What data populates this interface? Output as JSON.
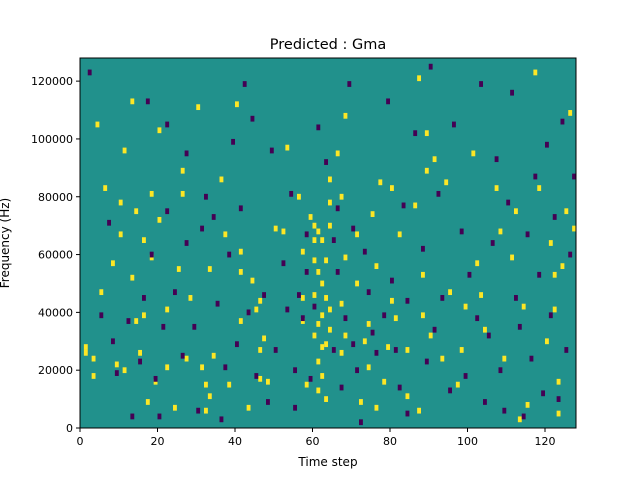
{
  "chart_data": {
    "type": "heatmap",
    "title": "Predicted : Gma",
    "xlabel": "Time step",
    "ylabel": "Frequency (Hz)",
    "xlim": [
      0,
      128
    ],
    "ylim": [
      0,
      128000
    ],
    "xticks": [
      0,
      20,
      40,
      60,
      80,
      100,
      120
    ],
    "yticks": [
      0,
      20000,
      40000,
      60000,
      80000,
      100000,
      120000
    ],
    "xtick_labels": [
      "0",
      "20",
      "40",
      "60",
      "80",
      "100",
      "120"
    ],
    "ytick_labels": [
      "0",
      "20000",
      "40000",
      "60000",
      "80000",
      "100000",
      "120000"
    ],
    "grid": false,
    "legend": "none",
    "colors": {
      "background": "#21918c",
      "high": "#fde725",
      "low": "#440154"
    },
    "levels": {
      "background": 0,
      "high": 1,
      "low": -1
    },
    "cell_size": {
      "time_steps": 1,
      "frequency_hz": 2000
    },
    "high_cells": [
      [
        1,
        25000
      ],
      [
        1,
        27000
      ],
      [
        3,
        23000
      ],
      [
        3,
        17000
      ],
      [
        4,
        104000
      ],
      [
        5,
        46000
      ],
      [
        6,
        82000
      ],
      [
        8,
        56000
      ],
      [
        9,
        21000
      ],
      [
        10,
        66000
      ],
      [
        10,
        77000
      ],
      [
        11,
        19000
      ],
      [
        11,
        95000
      ],
      [
        13,
        51000
      ],
      [
        13,
        112000
      ],
      [
        14,
        74000
      ],
      [
        14,
        36000
      ],
      [
        15,
        25000
      ],
      [
        16,
        64000
      ],
      [
        16,
        38000
      ],
      [
        17,
        8000
      ],
      [
        18,
        80000
      ],
      [
        18,
        58000
      ],
      [
        19,
        15000
      ],
      [
        20,
        71000
      ],
      [
        20,
        102000
      ],
      [
        22,
        20000
      ],
      [
        22,
        40000
      ],
      [
        24,
        6000
      ],
      [
        25,
        54000
      ],
      [
        26,
        80000
      ],
      [
        26,
        88000
      ],
      [
        27,
        23000
      ],
      [
        28,
        44000
      ],
      [
        30,
        110000
      ],
      [
        31,
        20000
      ],
      [
        32,
        5000
      ],
      [
        32,
        14000
      ],
      [
        33,
        10000
      ],
      [
        33,
        54000
      ],
      [
        34,
        24000
      ],
      [
        36,
        85000
      ],
      [
        37,
        66000
      ],
      [
        38,
        14000
      ],
      [
        40,
        111000
      ],
      [
        41,
        53000
      ],
      [
        41,
        60000
      ],
      [
        41,
        36000
      ],
      [
        43,
        6000
      ],
      [
        44,
        50000
      ],
      [
        45,
        40000
      ],
      [
        46,
        16000
      ],
      [
        46,
        26000
      ],
      [
        46,
        43000
      ],
      [
        47,
        30000
      ],
      [
        48,
        15000
      ],
      [
        50,
        68000
      ],
      [
        52,
        67000
      ],
      [
        53,
        96000
      ],
      [
        56,
        79000
      ],
      [
        57,
        60000
      ],
      [
        57,
        36000
      ],
      [
        57,
        44000
      ],
      [
        58,
        14000
      ],
      [
        59,
        72000
      ],
      [
        60,
        69000
      ],
      [
        60,
        64000
      ],
      [
        60,
        57000
      ],
      [
        60,
        45000
      ],
      [
        60,
        31000
      ],
      [
        61,
        67000
      ],
      [
        61,
        53000
      ],
      [
        61,
        35000
      ],
      [
        61,
        22000
      ],
      [
        61,
        12000
      ],
      [
        62,
        64000
      ],
      [
        62,
        49000
      ],
      [
        62,
        38000
      ],
      [
        62,
        27000
      ],
      [
        62,
        17000
      ],
      [
        63,
        57000
      ],
      [
        63,
        44000
      ],
      [
        63,
        28000
      ],
      [
        63,
        9000
      ],
      [
        64,
        85000
      ],
      [
        64,
        77000
      ],
      [
        64,
        69000
      ],
      [
        64,
        40000
      ],
      [
        64,
        33000
      ],
      [
        66,
        94000
      ],
      [
        67,
        79000
      ],
      [
        67,
        42000
      ],
      [
        67,
        25000
      ],
      [
        68,
        107000
      ],
      [
        68,
        58000
      ],
      [
        68,
        31000
      ],
      [
        71,
        66000
      ],
      [
        71,
        49000
      ],
      [
        72,
        8000
      ],
      [
        73,
        29000
      ],
      [
        74,
        20000
      ],
      [
        74,
        35000
      ],
      [
        75,
        73000
      ],
      [
        76,
        6000
      ],
      [
        76,
        55000
      ],
      [
        77,
        84000
      ],
      [
        78,
        15000
      ],
      [
        79,
        27000
      ],
      [
        80,
        43000
      ],
      [
        80,
        82000
      ],
      [
        81,
        37000
      ],
      [
        82,
        66000
      ],
      [
        84,
        26000
      ],
      [
        84,
        10000
      ],
      [
        86,
        76000
      ],
      [
        87,
        120000
      ],
      [
        87,
        5000
      ],
      [
        88,
        52000
      ],
      [
        88,
        38000
      ],
      [
        89,
        101000
      ],
      [
        89,
        88000
      ],
      [
        90,
        31000
      ],
      [
        91,
        92000
      ],
      [
        93,
        23000
      ],
      [
        94,
        84000
      ],
      [
        95,
        46000
      ],
      [
        97,
        14000
      ],
      [
        98,
        26000
      ],
      [
        99,
        41000
      ],
      [
        101,
        94000
      ],
      [
        102,
        56000
      ],
      [
        103,
        45000
      ],
      [
        104,
        33000
      ],
      [
        107,
        82000
      ],
      [
        108,
        67000
      ],
      [
        109,
        23000
      ],
      [
        111,
        58000
      ],
      [
        112,
        74000
      ],
      [
        113,
        2000
      ],
      [
        114,
        41000
      ],
      [
        115,
        7000
      ],
      [
        117,
        122000
      ],
      [
        118,
        82000
      ],
      [
        120,
        29000
      ],
      [
        121,
        63000
      ],
      [
        122,
        52000
      ],
      [
        122,
        40000
      ],
      [
        123,
        15000
      ],
      [
        123,
        4000
      ],
      [
        124,
        55000
      ],
      [
        125,
        74000
      ],
      [
        126,
        108000
      ],
      [
        127,
        68000
      ]
    ],
    "low_cells": [
      [
        2,
        122000
      ],
      [
        5,
        38000
      ],
      [
        7,
        70000
      ],
      [
        8,
        29000
      ],
      [
        9,
        18000
      ],
      [
        12,
        36000
      ],
      [
        13,
        3000
      ],
      [
        15,
        22000
      ],
      [
        16,
        44000
      ],
      [
        17,
        112000
      ],
      [
        18,
        59000
      ],
      [
        19,
        16000
      ],
      [
        20,
        3000
      ],
      [
        21,
        34000
      ],
      [
        22,
        74000
      ],
      [
        22,
        104000
      ],
      [
        24,
        46000
      ],
      [
        26,
        24000
      ],
      [
        27,
        63000
      ],
      [
        27,
        94000
      ],
      [
        29,
        34000
      ],
      [
        30,
        5000
      ],
      [
        31,
        68000
      ],
      [
        32,
        79000
      ],
      [
        34,
        72000
      ],
      [
        35,
        42000
      ],
      [
        36,
        2000
      ],
      [
        37,
        20000
      ],
      [
        38,
        59000
      ],
      [
        39,
        98000
      ],
      [
        40,
        28000
      ],
      [
        41,
        75000
      ],
      [
        42,
        118000
      ],
      [
        43,
        39000
      ],
      [
        44,
        106000
      ],
      [
        45,
        17000
      ],
      [
        47,
        45000
      ],
      [
        48,
        8000
      ],
      [
        49,
        95000
      ],
      [
        50,
        26000
      ],
      [
        52,
        56000
      ],
      [
        53,
        40000
      ],
      [
        54,
        80000
      ],
      [
        55,
        19000
      ],
      [
        55,
        6000
      ],
      [
        56,
        45000
      ],
      [
        57,
        37000
      ],
      [
        58,
        66000
      ],
      [
        58,
        53000
      ],
      [
        59,
        16000
      ],
      [
        60,
        41000
      ],
      [
        61,
        103000
      ],
      [
        63,
        91000
      ],
      [
        65,
        64000
      ],
      [
        65,
        26000
      ],
      [
        66,
        75000
      ],
      [
        66,
        53000
      ],
      [
        67,
        13000
      ],
      [
        68,
        37000
      ],
      [
        69,
        118000
      ],
      [
        70,
        68000
      ],
      [
        70,
        28000
      ],
      [
        71,
        19000
      ],
      [
        72,
        1000
      ],
      [
        73,
        60000
      ],
      [
        74,
        46000
      ],
      [
        75,
        32000
      ],
      [
        76,
        25000
      ],
      [
        78,
        38000
      ],
      [
        79,
        112000
      ],
      [
        80,
        50000
      ],
      [
        81,
        26000
      ],
      [
        82,
        13000
      ],
      [
        83,
        76000
      ],
      [
        84,
        43000
      ],
      [
        84,
        4000
      ],
      [
        86,
        101000
      ],
      [
        88,
        61000
      ],
      [
        89,
        22000
      ],
      [
        90,
        124000
      ],
      [
        91,
        33000
      ],
      [
        92,
        80000
      ],
      [
        93,
        44000
      ],
      [
        95,
        12000
      ],
      [
        96,
        104000
      ],
      [
        98,
        67000
      ],
      [
        99,
        17000
      ],
      [
        100,
        52000
      ],
      [
        102,
        37000
      ],
      [
        103,
        118000
      ],
      [
        104,
        8000
      ],
      [
        105,
        31000
      ],
      [
        106,
        63000
      ],
      [
        107,
        92000
      ],
      [
        108,
        19000
      ],
      [
        109,
        5000
      ],
      [
        110,
        77000
      ],
      [
        111,
        115000
      ],
      [
        112,
        44000
      ],
      [
        113,
        34000
      ],
      [
        114,
        3000
      ],
      [
        115,
        66000
      ],
      [
        116,
        23000
      ],
      [
        117,
        86000
      ],
      [
        118,
        52000
      ],
      [
        119,
        11000
      ],
      [
        120,
        97000
      ],
      [
        121,
        38000
      ],
      [
        122,
        72000
      ],
      [
        123,
        9000
      ],
      [
        124,
        105000
      ],
      [
        125,
        26000
      ],
      [
        126,
        59000
      ],
      [
        127,
        86000
      ]
    ]
  }
}
